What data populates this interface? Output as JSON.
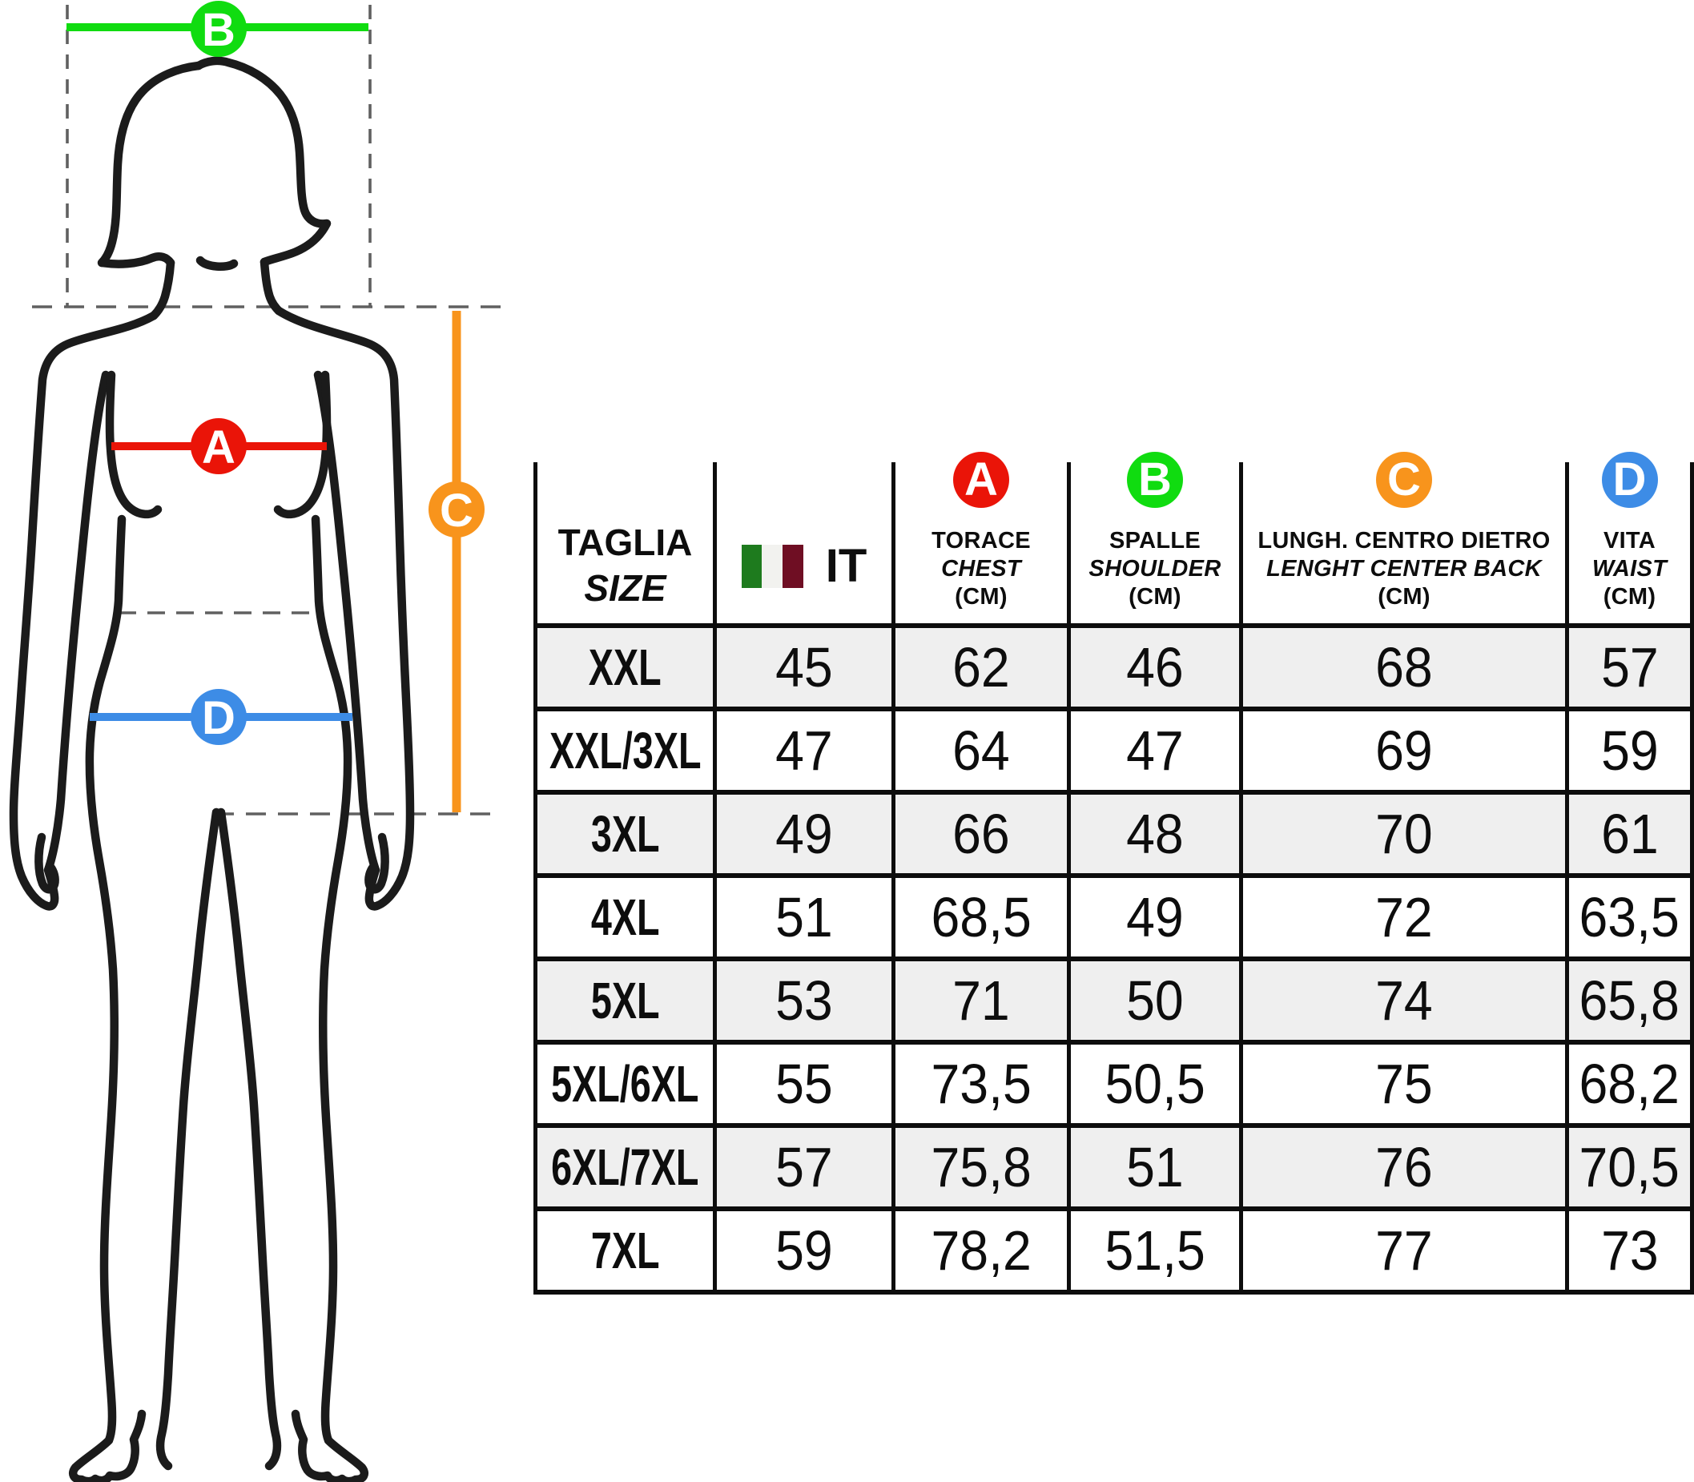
{
  "figure": {
    "stroke_color": "#1b1b1b",
    "dash_color": "#606060",
    "markers": {
      "a": {
        "letter": "A",
        "color": "#ea1408",
        "measures": "chest"
      },
      "b": {
        "letter": "B",
        "color": "#10dc10",
        "measures": "shoulder"
      },
      "c": {
        "letter": "C",
        "color": "#f8941c",
        "measures": "length-center-back"
      },
      "d": {
        "letter": "D",
        "color": "#3d8ce6",
        "measures": "waist"
      }
    }
  },
  "table": {
    "border_color": "#0d0d0d",
    "row_stripe_color": "#efefef",
    "header": {
      "size_col": {
        "line1": "TAGLIA",
        "line2": "SIZE"
      },
      "country_col": {
        "label": "IT"
      },
      "flag": {
        "name": "italy-flag",
        "green": "#1e7b1e",
        "white": "#f2f2ef",
        "red": "#6f0e23"
      },
      "cols": {
        "a": {
          "letter": "A",
          "color": "#ea1408",
          "name": "TORACE",
          "name_en": "CHEST",
          "unit": "(CM)"
        },
        "b": {
          "letter": "B",
          "color": "#10dc10",
          "name": "SPALLE",
          "name_en": "SHOULDER",
          "unit": "(CM)"
        },
        "c": {
          "letter": "C",
          "color": "#f8941c",
          "name": "LUNGH. CENTRO DIETRO",
          "name_en": "LENGHT CENTER BACK",
          "unit": "(CM)"
        },
        "d": {
          "letter": "D",
          "color": "#3d8ce6",
          "name": "VITA",
          "name_en": "WAIST",
          "unit": "(CM)"
        }
      }
    },
    "rows": [
      {
        "size": "XXL",
        "values": [
          "45",
          "62",
          "46",
          "68",
          "57"
        ]
      },
      {
        "size": "XXL/3XL",
        "values": [
          "47",
          "64",
          "47",
          "69",
          "59"
        ]
      },
      {
        "size": "3XL",
        "values": [
          "49",
          "66",
          "48",
          "70",
          "61"
        ]
      },
      {
        "size": "4XL",
        "values": [
          "51",
          "68,5",
          "49",
          "72",
          "63,5"
        ]
      },
      {
        "size": "5XL",
        "values": [
          "53",
          "71",
          "50",
          "74",
          "65,8"
        ]
      },
      {
        "size": "5XL/6XL",
        "values": [
          "55",
          "73,5",
          "50,5",
          "75",
          "68,2"
        ]
      },
      {
        "size": "6XL/7XL",
        "values": [
          "57",
          "75,8",
          "51",
          "76",
          "70,5"
        ]
      },
      {
        "size": "7XL",
        "values": [
          "59",
          "78,2",
          "51,5",
          "77",
          "73"
        ]
      }
    ]
  }
}
